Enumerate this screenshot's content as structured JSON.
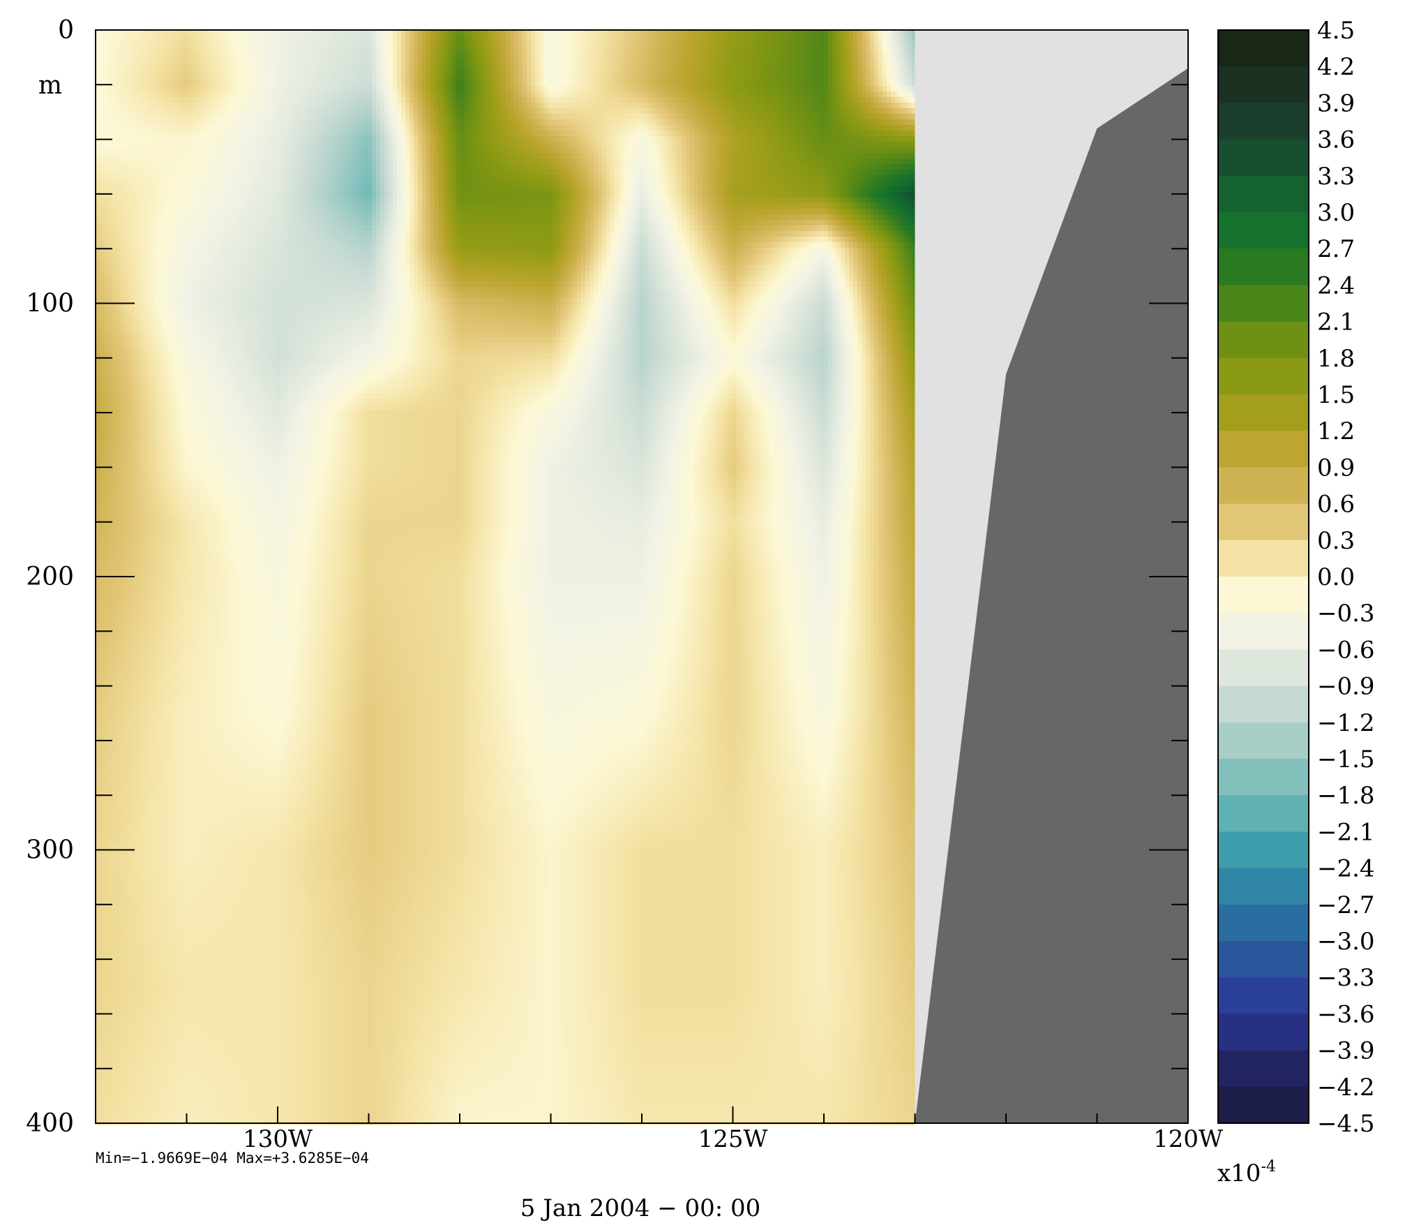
{
  "chart_data": {
    "type": "heatmap",
    "title": "",
    "xlabel": "",
    "ylabel": "m",
    "x_axis": {
      "min": -132,
      "max": -120,
      "ticks": [
        {
          "value": -130,
          "label": "130W"
        },
        {
          "value": -125,
          "label": "125W"
        },
        {
          "value": -120,
          "label": "120W"
        }
      ],
      "minor_step": 1
    },
    "y_axis": {
      "min": 0,
      "max": 400,
      "inverted": true,
      "unit_label": "m",
      "ticks": [
        {
          "value": 0,
          "label": "0"
        },
        {
          "value": 100,
          "label": "100"
        },
        {
          "value": 200,
          "label": "200"
        },
        {
          "value": 300,
          "label": "300"
        },
        {
          "value": 400,
          "label": "400"
        }
      ],
      "minor_step": 20
    },
    "colorbar": {
      "multiplier_base": "x10",
      "multiplier_exp": "-4",
      "min": -4.5,
      "max": 4.5,
      "step": 0.3,
      "labels": [
        "4.5",
        "4.2",
        "3.9",
        "3.6",
        "3.3",
        "3.0",
        "2.7",
        "2.4",
        "2.1",
        "1.8",
        "1.5",
        "1.2",
        "0.9",
        "0.6",
        "0.3",
        "0.0",
        "−0.3",
        "−0.6",
        "−0.9",
        "−1.2",
        "−1.5",
        "−1.8",
        "−2.1",
        "−2.4",
        "−2.7",
        "−3.0",
        "−3.3",
        "−3.6",
        "−3.9",
        "−4.2",
        "−4.5"
      ],
      "colors_top_to_bottom": [
        "#1a2616",
        "#1b3222",
        "#1b3f2c",
        "#174f2f",
        "#13622f",
        "#16712c",
        "#2a7a22",
        "#4a851a",
        "#6d9015",
        "#8a9913",
        "#a39f1c",
        "#bca530",
        "#cfb251",
        "#e2c677",
        "#f4e3a5",
        "#fcf8d5",
        "#f2f3e5",
        "#dee7dc",
        "#c6dad3",
        "#a7cec7",
        "#83c0bc",
        "#5fb1b2",
        "#3f9eac",
        "#2f86a6",
        "#2a6da0",
        "#2a569c",
        "#2b4098",
        "#283084",
        "#232462",
        "#1c1d48"
      ]
    },
    "field_grid": {
      "lon": [
        -132,
        -131,
        -130,
        -129,
        -128,
        -127,
        -126,
        -125,
        -124,
        -123
      ],
      "depth": [
        0,
        20,
        40,
        60,
        80,
        100,
        120,
        140,
        160,
        180,
        200,
        250,
        300,
        350,
        400
      ],
      "values": [
        [
          -0.2,
          0.2,
          -0.5,
          -0.8,
          2.0,
          -0.3,
          0.5,
          1.5,
          2.2,
          -1.5
        ],
        [
          -0.2,
          0.4,
          -0.5,
          -1.0,
          2.4,
          -0.3,
          0.6,
          1.6,
          2.2,
          -1.0
        ],
        [
          -0.2,
          -0.1,
          -0.6,
          -1.6,
          2.0,
          0.8,
          -0.3,
          1.2,
          2.0,
          1.6
        ],
        [
          0.2,
          -0.2,
          -0.7,
          -1.8,
          1.9,
          1.8,
          -0.6,
          1.3,
          1.6,
          3.5
        ],
        [
          0.4,
          -0.4,
          -0.8,
          -1.2,
          1.5,
          1.6,
          -1.0,
          0.8,
          -0.4,
          2.4
        ],
        [
          0.6,
          -0.5,
          -0.9,
          -0.8,
          0.6,
          0.8,
          -1.2,
          0.2,
          -1.0,
          2.0
        ],
        [
          0.8,
          -0.3,
          -0.9,
          -0.4,
          0.3,
          0.2,
          -1.2,
          -0.2,
          -1.2,
          1.6
        ],
        [
          0.9,
          -0.2,
          -0.7,
          0.2,
          0.3,
          -0.3,
          -1.0,
          0.3,
          -1.0,
          1.3
        ],
        [
          0.8,
          -0.1,
          -0.5,
          0.2,
          0.3,
          -0.5,
          -0.8,
          0.4,
          -0.8,
          1.1
        ],
        [
          0.7,
          0.1,
          -0.4,
          0.3,
          0.3,
          -0.5,
          -0.6,
          0.2,
          -0.6,
          1.0
        ],
        [
          0.6,
          0.1,
          -0.3,
          0.3,
          0.2,
          -0.5,
          -0.5,
          0.3,
          -0.5,
          0.9
        ],
        [
          0.4,
          0.0,
          -0.2,
          0.4,
          0.2,
          -0.3,
          -0.2,
          0.3,
          -0.3,
          0.7
        ],
        [
          0.3,
          0.0,
          0.1,
          0.4,
          0.2,
          -0.1,
          0.2,
          0.2,
          0.0,
          0.5
        ],
        [
          0.3,
          0.1,
          0.1,
          0.3,
          0.1,
          -0.1,
          0.2,
          0.2,
          0.0,
          0.4
        ],
        [
          0.2,
          0.0,
          0.1,
          0.3,
          -0.1,
          -0.1,
          0.1,
          0.1,
          0.1,
          0.3
        ]
      ]
    },
    "land_boundary": [
      {
        "lon": -123,
        "depth": 400
      },
      {
        "lon": -122,
        "depth": 126
      },
      {
        "lon": -121,
        "depth": 36
      },
      {
        "lon": -120,
        "depth": 14
      }
    ],
    "colors": {
      "missing_region": "#e1e1e1",
      "land": "#676767"
    }
  },
  "stats_line": "Min=−1.9669E−04   Max=+3.6285E−04",
  "date_label": "5 Jan 2004 − 00: 00"
}
